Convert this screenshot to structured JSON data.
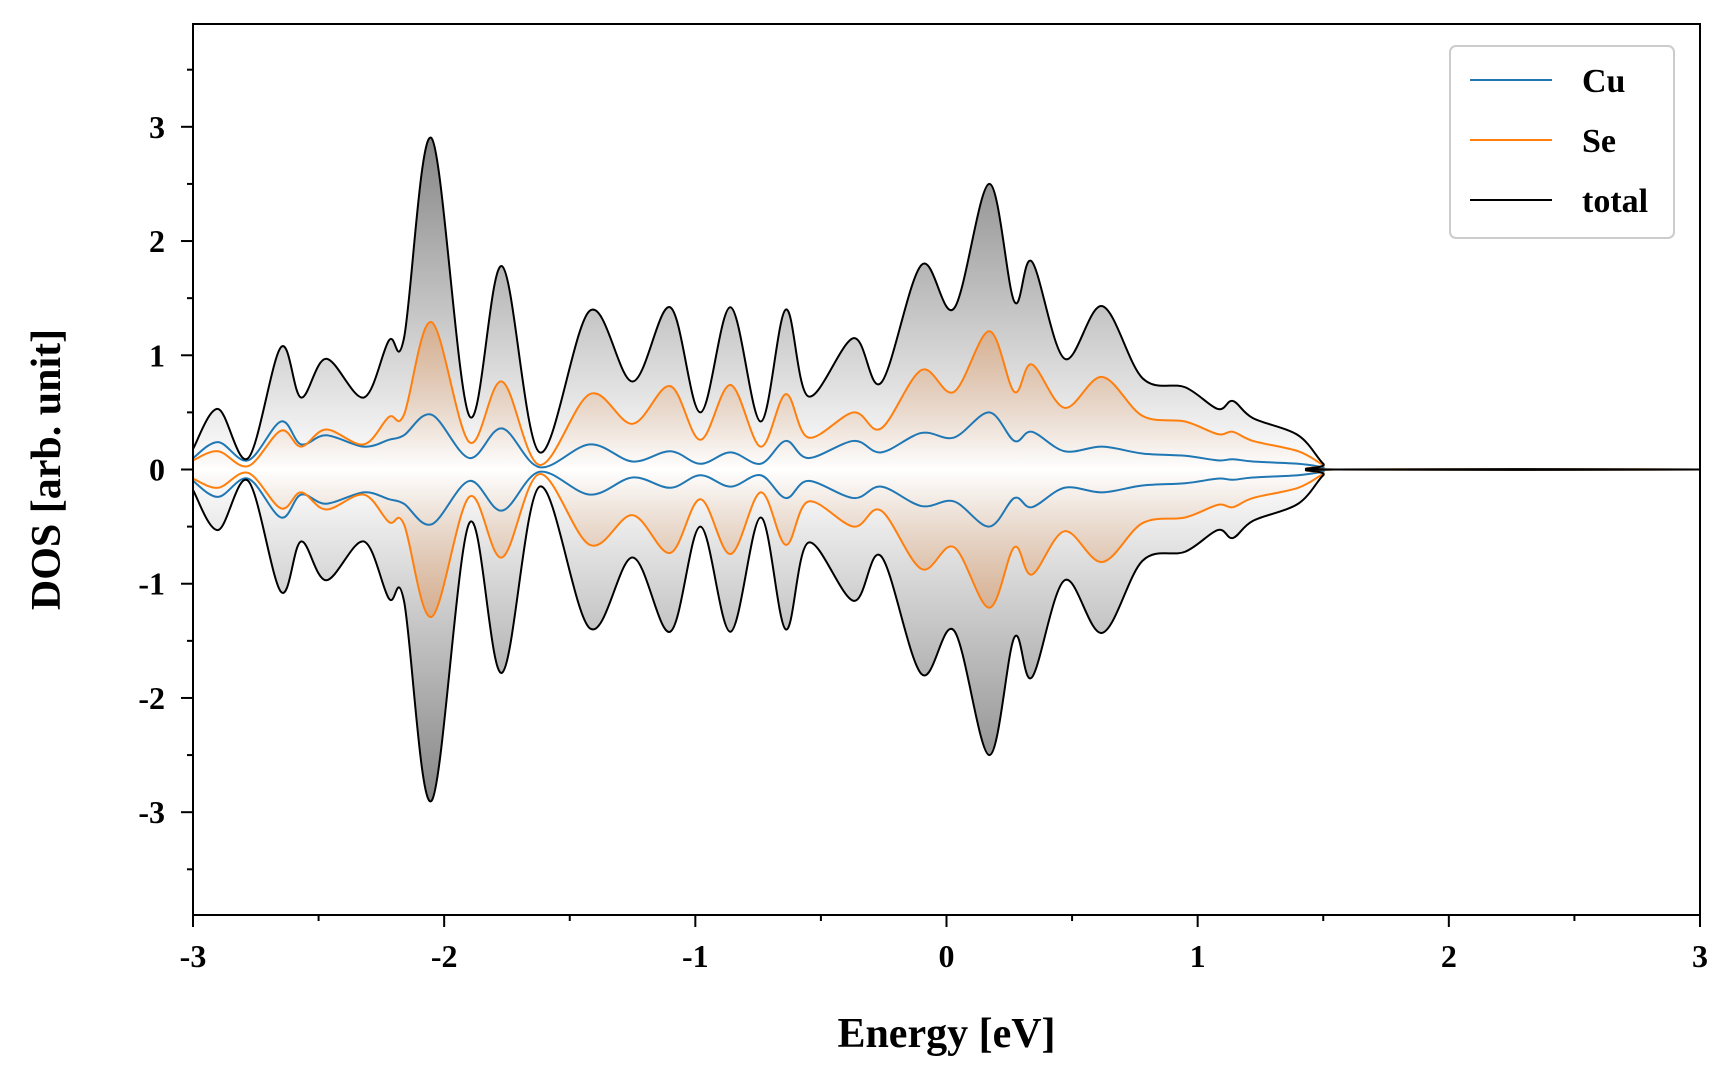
{
  "chart_data": {
    "type": "area",
    "title": "",
    "xlabel": "Energy [eV]",
    "ylabel": "DOS [arb. unit]",
    "xlim": [
      -3,
      3
    ],
    "ylim": [
      -3.9,
      3.9
    ],
    "x_ticks": [
      -3,
      -2,
      -1,
      0,
      1,
      2,
      3
    ],
    "x_tick_labels": [
      "-3",
      "-2",
      "-1",
      "0",
      "1",
      "2",
      "3"
    ],
    "y_ticks": [
      -3,
      -2,
      -1,
      0,
      1,
      2,
      3
    ],
    "y_tick_labels": [
      "-3",
      "-2",
      "-1",
      "0",
      "1",
      "2",
      "3"
    ],
    "grid": false,
    "legend_position": "top-right",
    "mirrored_about_zero": true,
    "x": [
      -3.0,
      -2.9,
      -2.78,
      -2.65,
      -2.57,
      -2.47,
      -2.32,
      -2.22,
      -2.16,
      -2.05,
      -1.9,
      -1.77,
      -1.62,
      -1.42,
      -1.25,
      -1.1,
      -0.98,
      -0.86,
      -0.74,
      -0.64,
      -0.55,
      -0.37,
      -0.26,
      -0.1,
      0.03,
      0.17,
      0.27,
      0.34,
      0.47,
      0.62,
      0.78,
      0.95,
      1.08,
      1.14,
      1.22,
      1.4,
      1.5,
      1.55,
      3.0
    ],
    "series": [
      {
        "name": "Cu",
        "color": "#1f77b4",
        "values": [
          0.1,
          0.24,
          0.08,
          0.42,
          0.22,
          0.3,
          0.2,
          0.26,
          0.3,
          0.48,
          0.1,
          0.36,
          0.02,
          0.22,
          0.07,
          0.16,
          0.05,
          0.15,
          0.05,
          0.25,
          0.1,
          0.25,
          0.15,
          0.32,
          0.28,
          0.5,
          0.25,
          0.33,
          0.16,
          0.2,
          0.14,
          0.12,
          0.08,
          0.09,
          0.07,
          0.05,
          0.02,
          0.0,
          0.0
        ]
      },
      {
        "name": "Se",
        "color": "#ff7f0e",
        "values": [
          0.08,
          0.16,
          0.03,
          0.34,
          0.2,
          0.35,
          0.22,
          0.46,
          0.48,
          1.29,
          0.24,
          0.77,
          0.04,
          0.66,
          0.4,
          0.73,
          0.26,
          0.74,
          0.2,
          0.66,
          0.28,
          0.5,
          0.36,
          0.87,
          0.68,
          1.21,
          0.68,
          0.92,
          0.54,
          0.81,
          0.47,
          0.42,
          0.31,
          0.33,
          0.25,
          0.16,
          0.04,
          0.0,
          0.0
        ]
      },
      {
        "name": "total",
        "color": "#000000",
        "values": [
          0.18,
          0.53,
          0.1,
          1.07,
          0.63,
          0.97,
          0.63,
          1.13,
          1.15,
          2.9,
          0.47,
          1.78,
          0.15,
          1.39,
          0.77,
          1.42,
          0.5,
          1.42,
          0.42,
          1.4,
          0.64,
          1.15,
          0.76,
          1.79,
          1.41,
          2.5,
          1.47,
          1.82,
          0.97,
          1.43,
          0.8,
          0.72,
          0.53,
          0.6,
          0.45,
          0.3,
          0.05,
          0.0,
          0.0
        ]
      }
    ]
  }
}
